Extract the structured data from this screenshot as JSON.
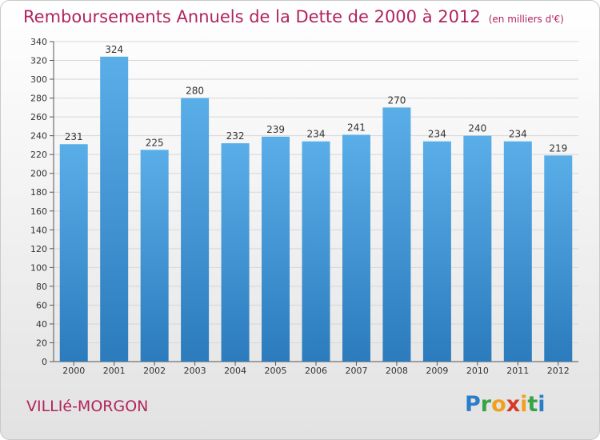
{
  "chart_data": {
    "type": "bar",
    "title": "Remboursements Annuels de la Dette de 2000 à 2012",
    "subtitle": "(en milliers d'€)",
    "categories": [
      "2000",
      "2001",
      "2002",
      "2003",
      "2004",
      "2005",
      "2006",
      "2007",
      "2008",
      "2009",
      "2010",
      "2011",
      "2012"
    ],
    "values": [
      231,
      324,
      225,
      280,
      232,
      239,
      234,
      241,
      270,
      234,
      240,
      234,
      219
    ],
    "ylim": [
      0,
      340
    ],
    "ytick_step": 20,
    "grid": true,
    "bar_color_top": "#5aaee8",
    "bar_color_bottom": "#2b7bbd"
  },
  "footer": {
    "place": "VILLIé-MORGON",
    "logo_letters": [
      {
        "ch": "P",
        "color": "#2a7dc8"
      },
      {
        "ch": "r",
        "color": "#3aa346"
      },
      {
        "ch": "o",
        "color": "#f0a020"
      },
      {
        "ch": "x",
        "color": "#d83a2a"
      },
      {
        "ch": "i",
        "color": "#f0a020"
      },
      {
        "ch": "t",
        "color": "#3aa346"
      },
      {
        "ch": "i",
        "color": "#2a7dc8"
      }
    ]
  }
}
